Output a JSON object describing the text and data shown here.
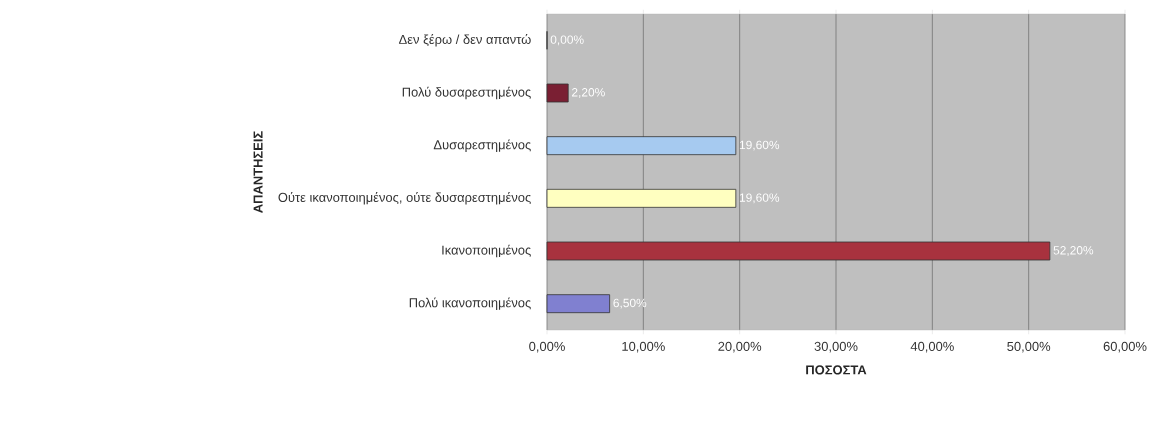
{
  "chart_data": {
    "type": "bar",
    "orientation": "horizontal",
    "xlabel": "ΠΟΣΟΣΤΑ",
    "ylabel": "ΑΠΑΝΤΗΣΕΙΣ",
    "categories": [
      "Δεν ξέρω / δεν απαντώ",
      "Πολύ δυσαρεστημένος",
      "Δυσαρεστημένος",
      "Ούτε ικανοποιημένος, ούτε δυσαρεστημένος",
      "Ικανοποιημένος",
      "Πολύ ικανοποιημένος"
    ],
    "values": [
      0,
      2.2,
      19.6,
      19.6,
      52.2,
      6.5
    ],
    "colors": [
      "#9999ff",
      "#7a1f33",
      "#a6caf0",
      "#ffffc0",
      "#a8323e",
      "#8080d0"
    ],
    "value_labels": [
      "0,00%",
      "2,20%",
      "19,60%",
      "19,60%",
      "52,20%",
      "6,50%"
    ],
    "xlim": [
      0,
      60
    ],
    "xticks": [
      {
        "value": 0,
        "label": "0,00%"
      },
      {
        "value": 10,
        "label": "10,00%"
      },
      {
        "value": 20,
        "label": "20,00%"
      },
      {
        "value": 30,
        "label": "30,00%"
      },
      {
        "value": 40,
        "label": "40,00%"
      },
      {
        "value": 50,
        "label": "50,00%"
      },
      {
        "value": 60,
        "label": "60,00%"
      }
    ],
    "grid": "x"
  }
}
